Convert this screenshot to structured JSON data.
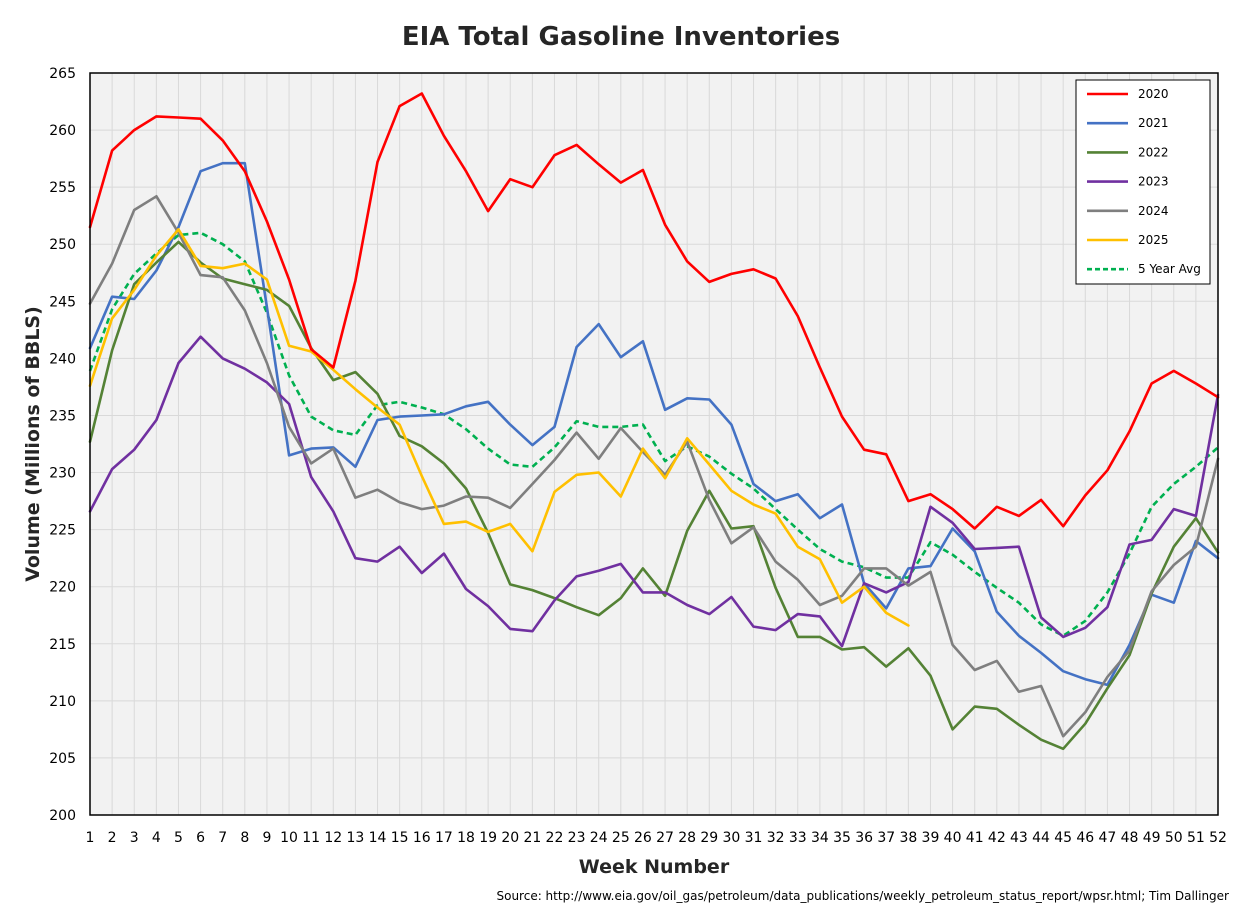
{
  "chart_data": {
    "type": "line",
    "title": "EIA Total Gasoline Inventories",
    "xlabel": "Week Number",
    "ylabel": "Volume (Millions of BBLS)",
    "source": "Source: http://www.eia.gov/oil_gas/petroleum/data_publications/weekly_petroleum_status_report/wpsr.html; Tim Dallinger",
    "xlim": [
      1,
      52
    ],
    "ylim": [
      200,
      265
    ],
    "ystep": 5,
    "grid": true,
    "legend_position": "top-right",
    "x": [
      1,
      2,
      3,
      4,
      5,
      6,
      7,
      8,
      9,
      10,
      11,
      12,
      13,
      14,
      15,
      16,
      17,
      18,
      19,
      20,
      21,
      22,
      23,
      24,
      25,
      26,
      27,
      28,
      29,
      30,
      31,
      32,
      33,
      34,
      35,
      36,
      37,
      38,
      39,
      40,
      41,
      42,
      43,
      44,
      45,
      46,
      47,
      48,
      49,
      50,
      51,
      52
    ],
    "series": [
      {
        "name": "2020",
        "color": "#ff0000",
        "dash": false,
        "values": [
          251.5,
          258.2,
          260.0,
          261.2,
          261.1,
          261.0,
          259.1,
          256.4,
          252.0,
          246.9,
          240.8,
          239.2,
          246.8,
          257.2,
          262.1,
          263.2,
          259.5,
          256.4,
          252.9,
          255.7,
          255.0,
          257.8,
          258.7,
          257.0,
          255.4,
          256.5,
          251.7,
          248.5,
          246.7,
          247.4,
          247.8,
          247.0,
          243.7,
          239.2,
          234.9,
          232.0,
          231.6,
          227.5,
          228.1,
          226.8,
          225.1,
          227.0,
          226.2,
          227.6,
          225.3,
          228.0,
          230.2,
          233.6,
          237.8,
          238.9,
          237.8,
          236.6
        ]
      },
      {
        "name": "2021",
        "color": "#4472c4",
        "dash": false,
        "values": [
          240.9,
          245.4,
          245.2,
          247.7,
          251.5,
          256.4,
          257.1,
          257.1,
          244.5,
          231.5,
          232.1,
          232.2,
          230.5,
          234.6,
          234.9,
          235.0,
          235.1,
          235.8,
          236.2,
          234.2,
          232.4,
          234.0,
          241.0,
          243.0,
          240.1,
          241.5,
          235.5,
          236.5,
          236.4,
          234.2,
          229.0,
          227.5,
          228.1,
          226.0,
          227.2,
          220.3,
          218.1,
          221.6,
          221.8,
          225.1,
          223.1,
          217.8,
          215.7,
          214.2,
          212.6,
          211.9,
          211.4,
          214.9,
          219.3,
          218.6,
          224.0,
          222.5
        ]
      },
      {
        "name": "2022",
        "color": "#548235",
        "dash": false,
        "values": [
          232.7,
          240.7,
          246.5,
          248.4,
          250.2,
          248.4,
          247.0,
          246.5,
          246.0,
          244.6,
          240.9,
          238.1,
          238.8,
          236.9,
          233.2,
          232.3,
          230.8,
          228.6,
          224.7,
          220.2,
          219.7,
          219.0,
          218.2,
          217.5,
          219.0,
          221.6,
          219.2,
          224.9,
          228.4,
          225.1,
          225.3,
          219.9,
          215.6,
          215.6,
          214.5,
          214.7,
          213.0,
          214.6,
          212.2,
          207.5,
          209.5,
          209.3,
          207.9,
          206.6,
          205.8,
          208.0,
          211.1,
          214.0,
          219.4,
          223.5,
          226.0,
          223.0
        ]
      },
      {
        "name": "2023",
        "color": "#7030a0",
        "dash": false,
        "values": [
          226.6,
          230.3,
          232.0,
          234.6,
          239.6,
          241.9,
          240.0,
          239.1,
          237.9,
          236.0,
          229.6,
          226.6,
          222.5,
          222.2,
          223.5,
          221.2,
          222.9,
          219.8,
          218.3,
          216.3,
          216.1,
          218.8,
          220.9,
          221.4,
          222.0,
          219.5,
          219.5,
          218.4,
          217.6,
          219.1,
          216.5,
          216.2,
          217.6,
          217.4,
          214.8,
          220.3,
          219.5,
          220.4,
          227.0,
          225.6,
          223.3,
          223.4,
          223.5,
          217.3,
          215.6,
          216.4,
          218.2,
          223.7,
          224.1,
          226.8,
          226.2,
          236.8
        ]
      },
      {
        "name": "2024",
        "color": "#7f7f7f",
        "dash": false,
        "values": [
          244.8,
          248.3,
          253.0,
          254.2,
          251.0,
          247.3,
          247.1,
          244.2,
          239.6,
          234.0,
          230.8,
          232.1,
          227.8,
          228.5,
          227.4,
          226.8,
          227.1,
          227.9,
          227.8,
          226.9,
          229.0,
          231.1,
          233.5,
          231.2,
          233.9,
          231.8,
          229.8,
          232.7,
          227.6,
          223.8,
          225.2,
          222.2,
          220.6,
          218.4,
          219.2,
          221.6,
          221.6,
          220.1,
          221.3,
          214.9,
          212.7,
          213.5,
          210.8,
          211.3,
          206.9,
          209.0,
          212.1,
          214.4,
          219.6,
          221.9,
          223.5,
          231.2
        ]
      },
      {
        "name": "2025",
        "color": "#ffc000",
        "dash": false,
        "values": [
          237.6,
          243.5,
          246.0,
          249.0,
          251.3,
          248.1,
          247.9,
          248.3,
          246.9,
          241.1,
          240.6,
          239.0,
          237.3,
          235.7,
          234.2,
          229.7,
          225.5,
          225.7,
          224.8,
          225.5,
          223.1,
          228.3,
          229.8,
          230.0,
          227.9,
          232.1,
          229.5,
          233.0,
          230.7,
          228.4,
          227.2,
          226.4,
          223.5,
          222.4,
          218.6,
          220.0,
          217.7,
          216.6,
          null,
          null,
          null,
          null,
          null,
          null,
          null,
          null,
          null,
          null,
          null,
          null,
          null,
          null
        ]
      },
      {
        "name": "5 Year Avg",
        "color": "#00b050",
        "dash": true,
        "values": [
          238.9,
          244.3,
          247.4,
          249.2,
          250.8,
          251.0,
          250.0,
          248.5,
          244.0,
          238.5,
          234.9,
          233.7,
          233.3,
          235.9,
          236.2,
          235.7,
          235.1,
          233.8,
          232.1,
          230.7,
          230.5,
          232.2,
          234.5,
          234.0,
          234.0,
          234.2,
          231.0,
          232.3,
          231.4,
          229.9,
          228.6,
          226.8,
          225.0,
          223.3,
          222.2,
          221.7,
          220.8,
          220.8,
          223.9,
          222.8,
          221.3,
          219.9,
          218.6,
          216.7,
          215.7,
          217.0,
          219.5,
          222.9,
          227.0,
          229.0,
          230.5,
          232.2
        ]
      }
    ]
  }
}
